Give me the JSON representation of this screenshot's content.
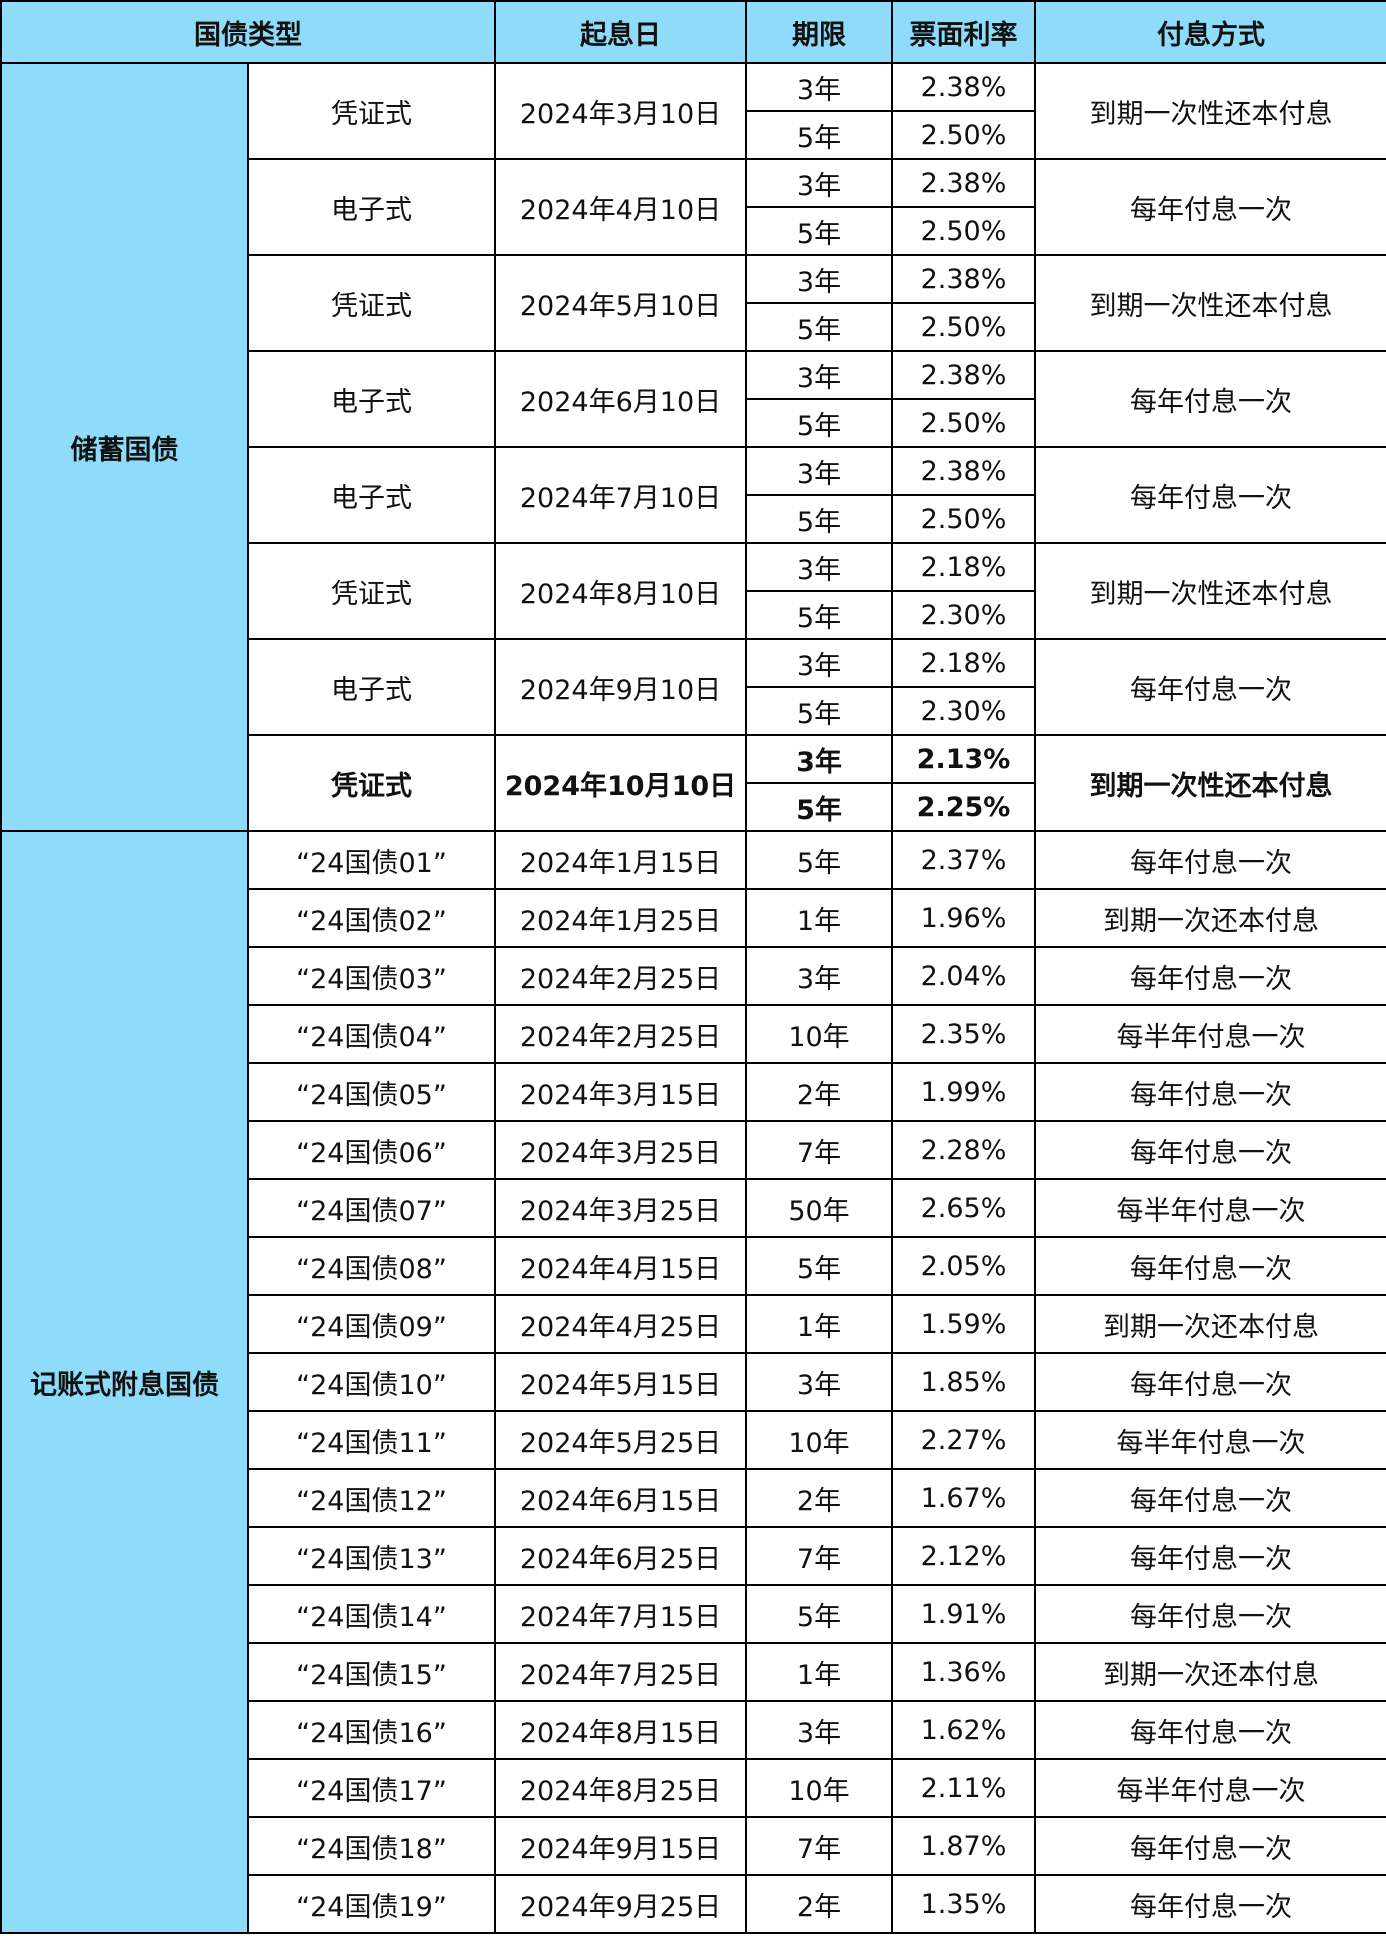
{
  "header": {
    "type": "国债类型",
    "start_date": "起息日",
    "term": "期限",
    "rate": "票面利率",
    "payment": "付息方式"
  },
  "colors": {
    "header_bg": "#8edcf9",
    "category_bg": "#8edcf9"
  },
  "savings": {
    "category": "储蓄国债",
    "groups": [
      {
        "form": "凭证式",
        "date": "2024年3月10日",
        "terms": [
          {
            "term": "3年",
            "rate": "2.38%"
          },
          {
            "term": "5年",
            "rate": "2.50%"
          }
        ],
        "payment": "到期一次性还本付息",
        "bold": false
      },
      {
        "form": "电子式",
        "date": "2024年4月10日",
        "terms": [
          {
            "term": "3年",
            "rate": "2.38%"
          },
          {
            "term": "5年",
            "rate": "2.50%"
          }
        ],
        "payment": "每年付息一次",
        "bold": false
      },
      {
        "form": "凭证式",
        "date": "2024年5月10日",
        "terms": [
          {
            "term": "3年",
            "rate": "2.38%"
          },
          {
            "term": "5年",
            "rate": "2.50%"
          }
        ],
        "payment": "到期一次性还本付息",
        "bold": false
      },
      {
        "form": "电子式",
        "date": "2024年6月10日",
        "terms": [
          {
            "term": "3年",
            "rate": "2.38%"
          },
          {
            "term": "5年",
            "rate": "2.50%"
          }
        ],
        "payment": "每年付息一次",
        "bold": false
      },
      {
        "form": "电子式",
        "date": "2024年7月10日",
        "terms": [
          {
            "term": "3年",
            "rate": "2.38%"
          },
          {
            "term": "5年",
            "rate": "2.50%"
          }
        ],
        "payment": "每年付息一次",
        "bold": false
      },
      {
        "form": "凭证式",
        "date": "2024年8月10日",
        "terms": [
          {
            "term": "3年",
            "rate": "2.18%"
          },
          {
            "term": "5年",
            "rate": "2.30%"
          }
        ],
        "payment": "到期一次性还本付息",
        "bold": false
      },
      {
        "form": "电子式",
        "date": "2024年9月10日",
        "terms": [
          {
            "term": "3年",
            "rate": "2.18%"
          },
          {
            "term": "5年",
            "rate": "2.30%"
          }
        ],
        "payment": "每年付息一次",
        "bold": false
      },
      {
        "form": "凭证式",
        "date": "2024年10月10日",
        "terms": [
          {
            "term": "3年",
            "rate": "2.13%"
          },
          {
            "term": "5年",
            "rate": "2.25%"
          }
        ],
        "payment": "到期一次性还本付息",
        "bold": true
      }
    ]
  },
  "bookkeeping": {
    "category": "记账式附息国债",
    "rows": [
      {
        "name": "“24国债01”",
        "date": "2024年1月15日",
        "term": "5年",
        "rate": "2.37%",
        "payment": "每年付息一次"
      },
      {
        "name": "“24国债02”",
        "date": "2024年1月25日",
        "term": "1年",
        "rate": "1.96%",
        "payment": "到期一次还本付息"
      },
      {
        "name": "“24国债03”",
        "date": "2024年2月25日",
        "term": "3年",
        "rate": "2.04%",
        "payment": "每年付息一次"
      },
      {
        "name": "“24国债04”",
        "date": "2024年2月25日",
        "term": "10年",
        "rate": "2.35%",
        "payment": "每半年付息一次"
      },
      {
        "name": "“24国债05”",
        "date": "2024年3月15日",
        "term": "2年",
        "rate": "1.99%",
        "payment": "每年付息一次"
      },
      {
        "name": "“24国债06”",
        "date": "2024年3月25日",
        "term": "7年",
        "rate": "2.28%",
        "payment": "每年付息一次"
      },
      {
        "name": "“24国债07”",
        "date": "2024年3月25日",
        "term": "50年",
        "rate": "2.65%",
        "payment": "每半年付息一次"
      },
      {
        "name": "“24国债08”",
        "date": "2024年4月15日",
        "term": "5年",
        "rate": "2.05%",
        "payment": "每年付息一次"
      },
      {
        "name": "“24国债09”",
        "date": "2024年4月25日",
        "term": "1年",
        "rate": "1.59%",
        "payment": "到期一次还本付息"
      },
      {
        "name": "“24国债10”",
        "date": "2024年5月15日",
        "term": "3年",
        "rate": "1.85%",
        "payment": "每年付息一次"
      },
      {
        "name": "“24国债11”",
        "date": "2024年5月25日",
        "term": "10年",
        "rate": "2.27%",
        "payment": "每半年付息一次"
      },
      {
        "name": "“24国债12”",
        "date": "2024年6月15日",
        "term": "2年",
        "rate": "1.67%",
        "payment": "每年付息一次"
      },
      {
        "name": "“24国债13”",
        "date": "2024年6月25日",
        "term": "7年",
        "rate": "2.12%",
        "payment": "每年付息一次"
      },
      {
        "name": "“24国债14”",
        "date": "2024年7月15日",
        "term": "5年",
        "rate": "1.91%",
        "payment": "每年付息一次"
      },
      {
        "name": "“24国债15”",
        "date": "2024年7月25日",
        "term": "1年",
        "rate": "1.36%",
        "payment": "到期一次还本付息"
      },
      {
        "name": "“24国债16”",
        "date": "2024年8月15日",
        "term": "3年",
        "rate": "1.62%",
        "payment": "每年付息一次"
      },
      {
        "name": "“24国债17”",
        "date": "2024年8月25日",
        "term": "10年",
        "rate": "2.11%",
        "payment": "每半年付息一次"
      },
      {
        "name": "“24国债18”",
        "date": "2024年9月15日",
        "term": "7年",
        "rate": "1.87%",
        "payment": "每年付息一次"
      },
      {
        "name": "“24国债19”",
        "date": "2024年9月25日",
        "term": "2年",
        "rate": "1.35%",
        "payment": "每年付息一次"
      }
    ]
  }
}
